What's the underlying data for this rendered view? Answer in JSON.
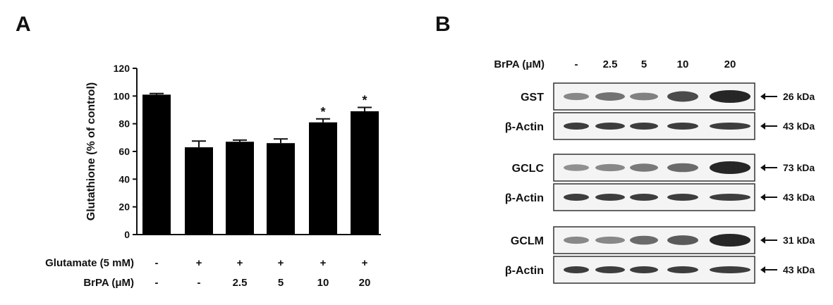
{
  "panels": {
    "a": "A",
    "b": "B"
  },
  "chart_data": {
    "type": "bar",
    "ylabel": "Glutathione (% of control)",
    "ylim": [
      0,
      120
    ],
    "yticks": [
      0,
      20,
      40,
      60,
      80,
      100,
      120
    ],
    "values": [
      101,
      63,
      67,
      66,
      81,
      89
    ],
    "errors": [
      0.8,
      4.5,
      1.2,
      3.0,
      2.5,
      2.8
    ],
    "significance": [
      "",
      "",
      "",
      "",
      "*",
      "*"
    ],
    "conditions": [
      {
        "label": "Glutamate (5 mM)",
        "values": [
          "-",
          "+",
          "+",
          "+",
          "+",
          "+"
        ]
      },
      {
        "label": "BrPA (μM)",
        "values": [
          "-",
          "-",
          "2.5",
          "5",
          "10",
          "20"
        ]
      }
    ],
    "bar_color": "#000000"
  },
  "blot": {
    "header_label": "BrPA (μM)",
    "lanes": [
      "-",
      "2.5",
      "5",
      "10",
      "20"
    ],
    "groups": [
      {
        "protein": "GST",
        "protein_size": "26 kDa",
        "protein_intensity": [
          0.35,
          0.5,
          0.4,
          0.75,
          1.0
        ],
        "loading": "β-Actin",
        "loading_size": "43 kDa"
      },
      {
        "protein": "GCLC",
        "protein_size": "73 kDa",
        "protein_intensity": [
          0.3,
          0.35,
          0.45,
          0.55,
          1.0
        ],
        "loading": "β-Actin",
        "loading_size": "43 kDa"
      },
      {
        "protein": "GCLM",
        "protein_size": "31 kDa",
        "protein_intensity": [
          0.35,
          0.35,
          0.55,
          0.65,
          1.0
        ],
        "loading": "β-Actin",
        "loading_size": "43 kDa"
      }
    ]
  }
}
